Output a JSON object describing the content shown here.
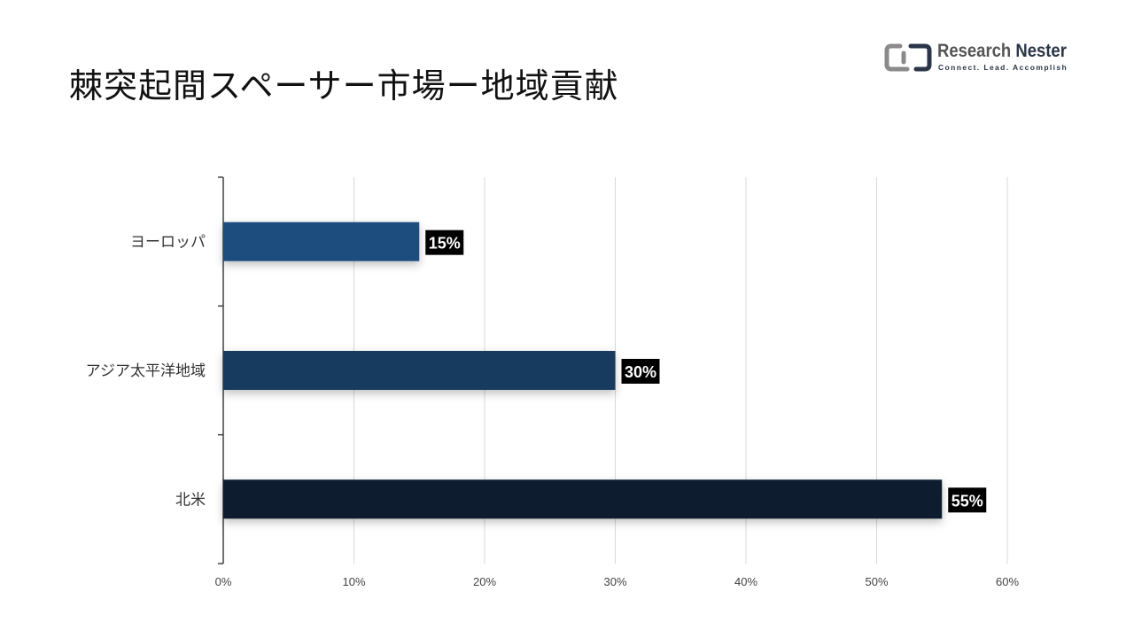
{
  "title": "棘突起間スペーサー市場ー地域貢献",
  "logo": {
    "name_part1": "Research ",
    "name_part2": "Nester",
    "tagline": "Connect. Lead. Accomplish"
  },
  "chart_data": {
    "type": "bar",
    "orientation": "horizontal",
    "categories": [
      "ヨーロッパ",
      "アジア太平洋地域",
      "北米"
    ],
    "values": [
      15,
      30,
      55
    ],
    "data_labels": [
      "15%",
      "30%",
      "55%"
    ],
    "bar_colors": [
      "#1e4e7e",
      "#173a5e",
      "#0f1e2e"
    ],
    "xlim": [
      0,
      60
    ],
    "xticks": [
      0,
      10,
      20,
      30,
      40,
      50,
      60
    ],
    "xtick_labels": [
      "0%",
      "10%",
      "20%",
      "30%",
      "40%",
      "50%",
      "60%"
    ],
    "grid": true,
    "legend": "none"
  }
}
